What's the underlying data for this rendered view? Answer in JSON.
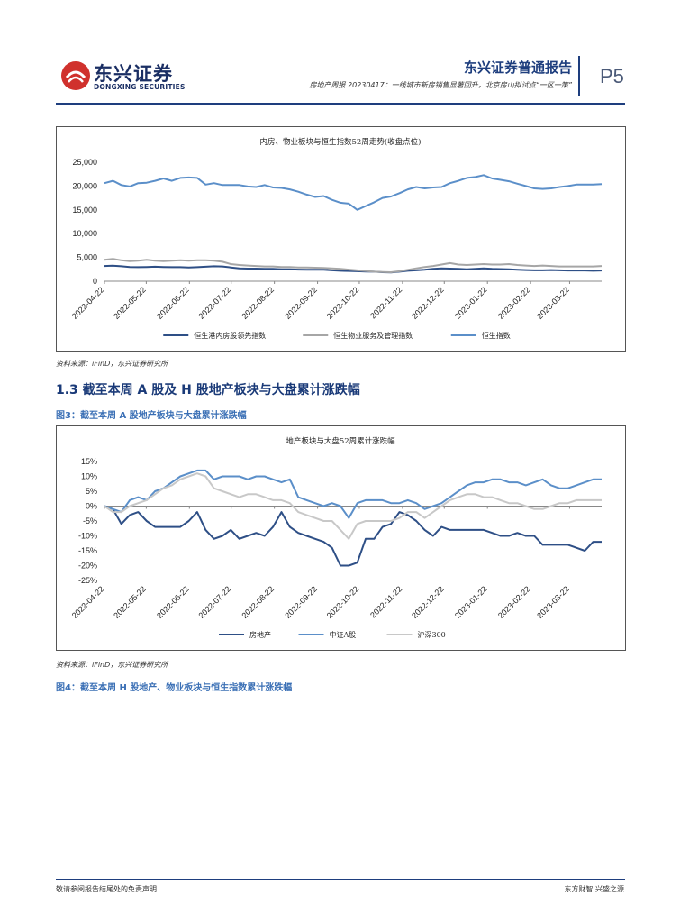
{
  "header": {
    "logo_cn": "东兴证券",
    "logo_en": "DONGXING SECURITIES",
    "report_type": "东兴证券普通报告",
    "subtitle": "房地产周报 20230417：一线城市新房销售显著回升，北京房山拟试点“一区一策”",
    "page_no": "P5"
  },
  "section": {
    "heading": "1.3 截至本周 A 股及 H 股地产板块与大盘累计涨跌幅"
  },
  "figure2": {
    "source": "资料来源：iFinD，东兴证券研究所"
  },
  "figure3": {
    "caption": "图3：截至本周 A 股地产板块与大盘累计涨跌幅",
    "source": "资料来源：iFinD，东兴证券研究所"
  },
  "figure4": {
    "caption": "图4：截至本周 H 股地产、物业板块与恒生指数累计涨跌幅"
  },
  "footer": {
    "left": "敬请参阅报告结尾处的免责声明",
    "right": "东方财智 兴盛之源"
  },
  "colors": {
    "dark_blue": "#2e4f86",
    "light_blue": "#5b8fc9",
    "gray": "#a6a6a6",
    "brand_red": "#d0312d"
  },
  "chart_data": [
    {
      "type": "line",
      "title": "内房、物业板块与恒生指数52周走势(收盘点位)",
      "x_ticks": [
        "2022-04-22",
        "2022-05-22",
        "2022-06-22",
        "2022-07-22",
        "2022-08-22",
        "2022-09-22",
        "2022-10-22",
        "2022-11-22",
        "2022-12-22",
        "2023-01-22",
        "2023-02-22",
        "2023-03-22"
      ],
      "x_start": "2022-04-22",
      "x_end": "2023-04-14",
      "ylim": [
        0,
        25000
      ],
      "y_ticks": [
        "0",
        "5,000",
        "10,000",
        "15,000",
        "20,000",
        "25,000"
      ],
      "legend_position": "bottom",
      "series": [
        {
          "name": "恒生港内房股领先指数",
          "color": "#2e4f86",
          "values": [
            3200,
            3250,
            3150,
            3000,
            2950,
            3000,
            3050,
            3000,
            2950,
            2950,
            2900,
            2950,
            3050,
            3150,
            3100,
            2900,
            2700,
            2650,
            2650,
            2600,
            2600,
            2500,
            2500,
            2450,
            2400,
            2400,
            2400,
            2300,
            2200,
            2150,
            2100,
            2050,
            2000,
            1900,
            1850,
            2000,
            2200,
            2300,
            2400,
            2600,
            2700,
            2650,
            2600,
            2500,
            2600,
            2700,
            2600,
            2550,
            2500,
            2400,
            2350,
            2300,
            2300,
            2350,
            2300,
            2250,
            2250,
            2250,
            2200,
            2250
          ]
        },
        {
          "name": "恒生物业服务及管理指数",
          "color": "#a6a6a6",
          "values": [
            4500,
            4700,
            4400,
            4200,
            4300,
            4500,
            4300,
            4200,
            4300,
            4400,
            4300,
            4400,
            4400,
            4300,
            4100,
            3600,
            3400,
            3300,
            3200,
            3100,
            3100,
            3000,
            3000,
            2900,
            2900,
            2850,
            2800,
            2700,
            2600,
            2450,
            2300,
            2150,
            2000,
            1950,
            1900,
            2100,
            2400,
            2700,
            3000,
            3200,
            3500,
            3800,
            3500,
            3400,
            3500,
            3600,
            3500,
            3500,
            3600,
            3400,
            3300,
            3200,
            3300,
            3200,
            3100,
            3100,
            3100,
            3100,
            3100,
            3200
          ]
        },
        {
          "name": "恒生指数",
          "color": "#5b8fc9",
          "values": [
            20600,
            21100,
            20200,
            19900,
            20600,
            20700,
            21100,
            21600,
            21100,
            21700,
            21800,
            21700,
            20300,
            20600,
            20200,
            20200,
            20200,
            19900,
            19800,
            20200,
            19700,
            19600,
            19300,
            18800,
            18200,
            17700,
            17900,
            17100,
            16500,
            16300,
            15000,
            15800,
            16600,
            17500,
            17800,
            18500,
            19300,
            19800,
            19500,
            19700,
            19800,
            20600,
            21100,
            21700,
            21900,
            22300,
            21600,
            21300,
            21000,
            20500,
            20000,
            19500,
            19400,
            19500,
            19800,
            20000,
            20300,
            20300,
            20300,
            20400
          ]
        }
      ]
    },
    {
      "type": "line",
      "title": "地产板块与大盘52周累计涨跌幅",
      "x_ticks": [
        "2022-04-22",
        "2022-05-22",
        "2022-06-22",
        "2022-07-22",
        "2022-08-22",
        "2022-09-22",
        "2022-10-22",
        "2022-11-22",
        "2022-12-22",
        "2023-01-22",
        "2023-02-22",
        "2023-03-22"
      ],
      "x_start": "2022-04-22",
      "x_end": "2023-04-14",
      "ylim": [
        -25,
        15
      ],
      "y_ticks": [
        "15%",
        "10%",
        "5%",
        "0%",
        "-5%",
        "-10%",
        "-15%",
        "-20%",
        "-25%"
      ],
      "legend_position": "bottom",
      "series": [
        {
          "name": "房地产",
          "color": "#2e4f86",
          "values": [
            0,
            -1,
            -6,
            -3,
            -2,
            -5,
            -7,
            -7,
            -7,
            -7,
            -5,
            -2,
            -8,
            -11,
            -10,
            -8,
            -11,
            -10,
            -9,
            -10,
            -7,
            -2,
            -7,
            -9,
            -10,
            -11,
            -12,
            -14,
            -20,
            -20,
            -19,
            -11,
            -11,
            -7,
            -6,
            -2,
            -3,
            -5,
            -8,
            -10,
            -7,
            -8,
            -8,
            -8,
            -8,
            -8,
            -9,
            -10,
            -10,
            -9,
            -10,
            -10,
            -13,
            -13,
            -13,
            -13,
            -14,
            -15,
            -12,
            -12
          ]
        },
        {
          "name": "中证A股",
          "color": "#5b8fc9",
          "values": [
            0,
            -1,
            -2,
            2,
            3,
            2,
            5,
            6,
            8,
            10,
            11,
            12,
            12,
            9,
            10,
            10,
            10,
            9,
            10,
            10,
            9,
            8,
            9,
            3,
            2,
            1,
            0,
            1,
            0,
            -4,
            1,
            2,
            2,
            2,
            1,
            1,
            2,
            1,
            -1,
            0,
            1,
            3,
            5,
            7,
            8,
            8,
            9,
            9,
            8,
            8,
            7,
            8,
            9,
            7,
            6,
            6,
            7,
            8,
            9,
            9
          ]
        },
        {
          "name": "沪深300",
          "color": "#c8c8c8",
          "values": [
            0,
            -2,
            -2,
            0,
            1,
            2,
            4,
            6,
            7,
            9,
            10,
            11,
            10,
            6,
            5,
            4,
            3,
            4,
            4,
            3,
            2,
            2,
            1,
            -2,
            -3,
            -4,
            -5,
            -5,
            -8,
            -11,
            -6,
            -5,
            -5,
            -5,
            -5,
            -4,
            -2,
            -2,
            -4,
            -2,
            0,
            2,
            3,
            4,
            4,
            3,
            3,
            2,
            1,
            1,
            0,
            -1,
            -1,
            0,
            1,
            1,
            2,
            2,
            2,
            2
          ]
        }
      ]
    }
  ]
}
